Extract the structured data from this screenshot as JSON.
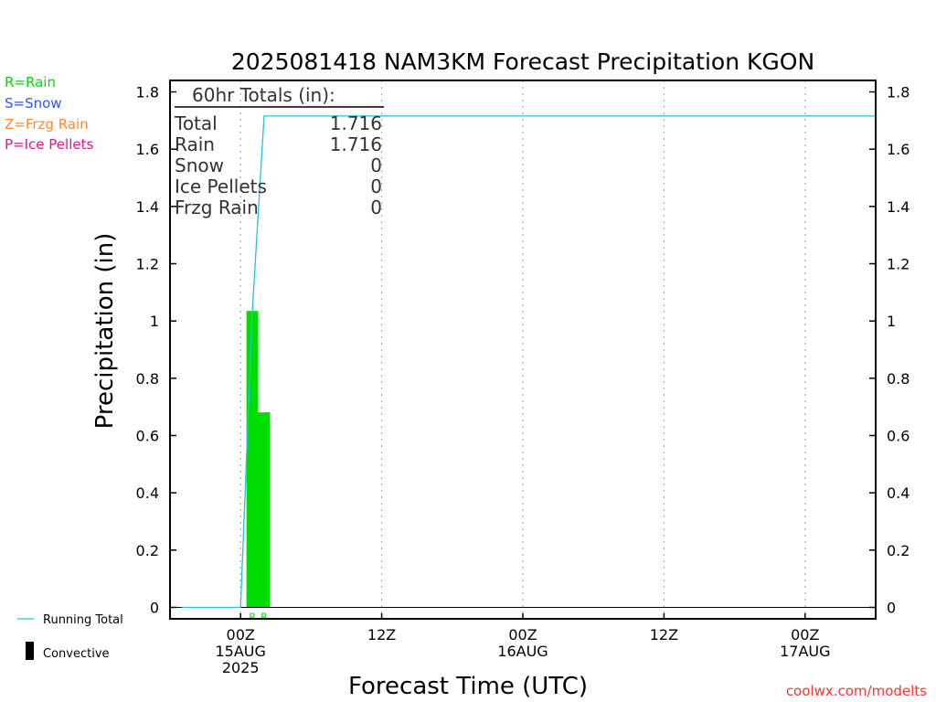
{
  "title": "2025081418 NAM3KM Forecast Precipitation KGON",
  "colors": {
    "rain": "#00dd00",
    "snow": "#3355ff",
    "frzg_rain": "#ff8833",
    "ice_pellets": "#ee1188",
    "running_total": "#22c4d4",
    "credit": "#ff3333",
    "axis": "#000000",
    "grid": "#aaaaaa",
    "totals_text": "#333333"
  },
  "type_legend": [
    {
      "label": "R=Rain",
      "color_key": "rain"
    },
    {
      "label": "S=Snow",
      "color_key": "snow"
    },
    {
      "label": "Z=Frzg Rain",
      "color_key": "frzg_rain"
    },
    {
      "label": "P=Ice Pellets",
      "color_key": "ice_pellets"
    }
  ],
  "bottom_legend": {
    "running_total": "Running Total",
    "convective": "Convective"
  },
  "totals": {
    "header": "60hr Totals (in):",
    "rows": [
      {
        "label": "Total",
        "value": "1.716"
      },
      {
        "label": "Rain",
        "value": "1.716"
      },
      {
        "label": "Snow",
        "value": "0"
      },
      {
        "label": "Ice Pellets",
        "value": "0"
      },
      {
        "label": "Frzg Rain",
        "value": "0"
      }
    ]
  },
  "credit": "coolwx.com/modelts",
  "chart_data": {
    "type": "bar",
    "title": "2025081418 NAM3KM Forecast Precipitation KGON",
    "xlabel": "Forecast Time (UTC)",
    "ylabel": "Precipitation (in)",
    "x_unit": "forecast hour",
    "xlim": [
      0,
      60
    ],
    "ylim": [
      -0.04,
      1.84
    ],
    "yticks": [
      0,
      0.2,
      0.4,
      0.6,
      0.8,
      1,
      1.2,
      1.4,
      1.6,
      1.8
    ],
    "ytick_labels": [
      "0",
      "0.2",
      "0.4",
      "0.6",
      "0.8",
      "1",
      "1.2",
      "1.4",
      "1.6",
      "1.8"
    ],
    "xticks": [
      {
        "hour": 6,
        "lines": [
          "00Z",
          "15AUG",
          "2025"
        ]
      },
      {
        "hour": 18,
        "lines": [
          "12Z"
        ]
      },
      {
        "hour": 30,
        "lines": [
          "00Z",
          "16AUG"
        ]
      },
      {
        "hour": 42,
        "lines": [
          "12Z"
        ]
      },
      {
        "hour": 54,
        "lines": [
          "00Z",
          "17AUG"
        ]
      }
    ],
    "grid": "vertical dotted",
    "bars": [
      {
        "start_hour": 6.5,
        "end_hour": 7.5,
        "value": 1.035,
        "type_label": "R",
        "type": "rain"
      },
      {
        "start_hour": 7.5,
        "end_hour": 8.5,
        "value": 0.681,
        "type_label": "R",
        "type": "rain"
      }
    ],
    "running_total": {
      "name": "Running Total",
      "points": [
        [
          1,
          0
        ],
        [
          6,
          0
        ],
        [
          7,
          1.035
        ],
        [
          8,
          1.716
        ],
        [
          60,
          1.716
        ]
      ]
    }
  }
}
